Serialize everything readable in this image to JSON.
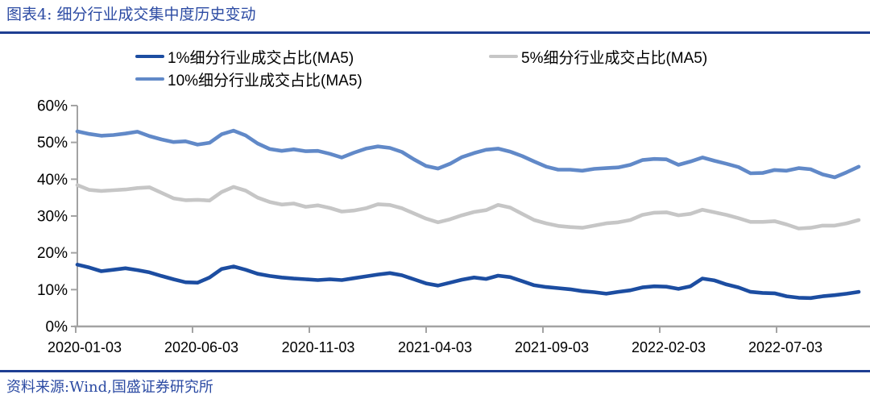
{
  "header": {
    "title": "图表4: 细分行业成交集中度历史变动"
  },
  "footer": {
    "source": "资料来源:Wind,国盛证券研究所"
  },
  "colors": {
    "rule_navy": "#1e3e92",
    "title_blue": "#2c4ba3",
    "axis_gray": "#a3a3a3",
    "tick_text": "#000000"
  },
  "chart_data": {
    "type": "line",
    "title": "细分行业成交集中度历史变动",
    "xlabel": "",
    "ylabel": "",
    "ylim": [
      0,
      60
    ],
    "grid": false,
    "legend_position": "top",
    "y_tick_labels": [
      "0%",
      "10%",
      "20%",
      "30%",
      "40%",
      "50%",
      "60%"
    ],
    "x_tick_labels": [
      "2020-01-03",
      "2020-06-03",
      "2020-11-03",
      "2021-04-03",
      "2021-09-03",
      "2022-02-03",
      "2022-07-03"
    ],
    "x_range_note": "weekly MA5 samples from 2020-01-03 onward, ~semi-monthly points",
    "series": [
      {
        "name": "1%细分行业成交占比(MA5)",
        "color": "#1c4da1",
        "values": [
          16.8,
          16.0,
          15.0,
          15.4,
          15.8,
          15.3,
          14.7,
          13.7,
          12.8,
          12.0,
          11.9,
          13.3,
          15.6,
          16.3,
          15.4,
          14.3,
          13.7,
          13.3,
          13.0,
          12.8,
          12.6,
          12.8,
          12.6,
          13.1,
          13.6,
          14.1,
          14.5,
          13.9,
          12.8,
          11.7,
          11.1,
          11.9,
          12.7,
          13.3,
          12.9,
          13.8,
          13.4,
          12.3,
          11.2,
          10.7,
          10.4,
          10.1,
          9.6,
          9.3,
          8.9,
          9.4,
          9.8,
          10.6,
          10.9,
          10.8,
          10.2,
          10.9,
          13.0,
          12.5,
          11.4,
          10.6,
          9.4,
          9.1,
          9.0,
          8.2,
          7.8,
          7.7,
          8.2,
          8.5,
          8.9,
          9.4
        ]
      },
      {
        "name": "5%细分行业成交占比(MA5)",
        "color": "#c6c6c6",
        "values": [
          38.4,
          37.1,
          36.8,
          37.0,
          37.2,
          37.6,
          37.8,
          36.3,
          34.8,
          34.3,
          34.4,
          34.2,
          36.5,
          37.9,
          36.9,
          35.0,
          33.8,
          33.1,
          33.4,
          32.5,
          32.9,
          32.2,
          31.2,
          31.5,
          32.1,
          33.2,
          33.0,
          32.1,
          30.7,
          29.3,
          28.3,
          29.1,
          30.2,
          31.1,
          31.6,
          33.0,
          32.3,
          30.6,
          28.9,
          28.0,
          27.3,
          27.0,
          26.8,
          27.4,
          28.0,
          28.3,
          28.9,
          30.3,
          30.9,
          31.0,
          30.2,
          30.6,
          31.7,
          31.0,
          30.3,
          29.4,
          28.4,
          28.4,
          28.6,
          27.7,
          26.6,
          26.8,
          27.4,
          27.4,
          28.0,
          28.9
        ]
      },
      {
        "name": "10%细分行业成交占比(MA5)",
        "color": "#6189c8",
        "values": [
          53.0,
          52.3,
          51.8,
          52.0,
          52.4,
          52.9,
          51.7,
          50.8,
          50.1,
          50.3,
          49.4,
          49.9,
          52.2,
          53.2,
          51.9,
          49.7,
          48.2,
          47.7,
          48.1,
          47.6,
          47.7,
          46.9,
          45.9,
          47.2,
          48.3,
          48.9,
          48.5,
          47.4,
          45.4,
          43.6,
          42.9,
          44.2,
          46.0,
          47.1,
          48.0,
          48.3,
          47.5,
          46.3,
          44.8,
          43.4,
          42.6,
          42.6,
          42.3,
          42.8,
          43.0,
          43.2,
          43.9,
          45.2,
          45.5,
          45.4,
          43.9,
          44.8,
          45.9,
          45.0,
          44.2,
          43.3,
          41.6,
          41.7,
          42.5,
          42.3,
          43.0,
          42.7,
          41.3,
          40.5,
          41.9,
          43.4
        ]
      }
    ]
  }
}
